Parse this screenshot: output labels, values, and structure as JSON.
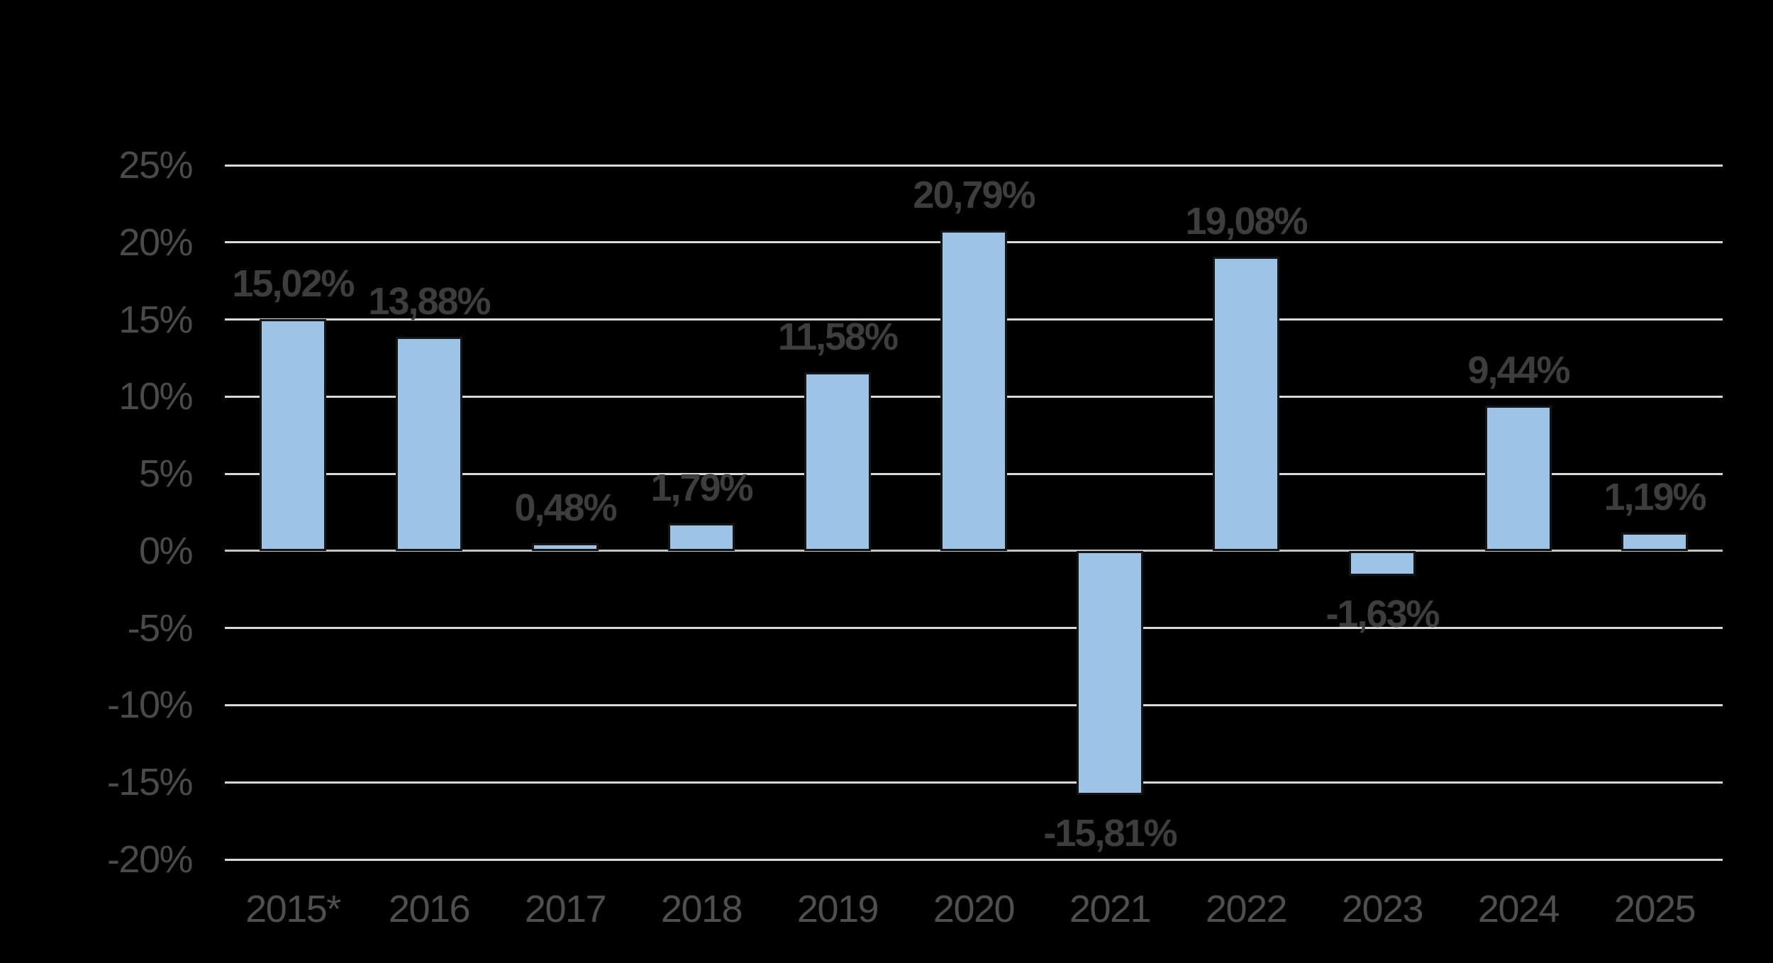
{
  "chart_data": {
    "type": "bar",
    "categories": [
      "2015*",
      "2016",
      "2017",
      "2018",
      "2019",
      "2020",
      "2021",
      "2022",
      "2023",
      "2024",
      "2025"
    ],
    "values": [
      15.02,
      13.88,
      0.48,
      1.79,
      11.58,
      20.79,
      -15.81,
      19.08,
      -1.63,
      9.44,
      1.19
    ],
    "data_labels": [
      "15,02%",
      "13,88%",
      "0,48%",
      "1,79%",
      "11,58%",
      "20,79%",
      "-15,81%",
      "19,08%",
      "-1,63%",
      "9,44%",
      "1,19%"
    ],
    "title": "",
    "xlabel": "",
    "ylabel": "",
    "ylim": [
      -20,
      25
    ],
    "ytick_step": 5,
    "yticks": [
      25,
      20,
      15,
      10,
      5,
      0,
      -5,
      -10,
      -15,
      -20
    ],
    "ytick_labels": [
      "25%",
      "20%",
      "15%",
      "10%",
      "5%",
      "0%",
      "-5%",
      "-10%",
      "-15%",
      "-20%"
    ],
    "grid": true,
    "legend": false,
    "decimal_separator": ",",
    "colors": {
      "background": "#000000",
      "bar_fill": "#9DC3E6",
      "bar_border": "#161616",
      "gridline": "#D9D9D9",
      "zero_line": "#C3C3C3",
      "y_tick_label": "#4A4A4A",
      "x_category_label": "#4F4F4F",
      "data_label": "#3D3D3D"
    }
  }
}
